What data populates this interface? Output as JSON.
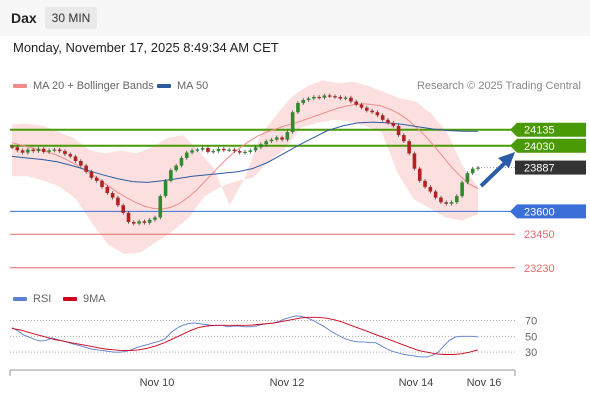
{
  "header": {
    "instrument": "Dax",
    "timeframe": "30 MIN"
  },
  "datetime": "Monday, November 17, 2025 8:49:34 AM CET",
  "legend": [
    {
      "label": "MA 20 + Bollinger Bands",
      "color": "#f28b8b"
    },
    {
      "label": "MA 50",
      "color": "#2f5a9e"
    }
  ],
  "credit": "Research © 2025 Trading Central",
  "rsi_legend": [
    {
      "label": "RSI",
      "color": "#5b7fd1"
    },
    {
      "label": "9MA",
      "color": "#d0021b"
    }
  ],
  "colors": {
    "resistance": "#4a9a06",
    "support": "#3a6fd8",
    "extra_support": "#e36a6a",
    "price_tag": "#333333",
    "bull": "#2e8b2e",
    "bear": "#b22222"
  },
  "chart_data": [
    {
      "type": "candlestick",
      "title": "",
      "x_ticks": [
        "Nov 10",
        "Nov 12",
        "Nov 14",
        "Nov 16"
      ],
      "ylim": [
        23150,
        24330
      ],
      "levels": [
        {
          "label": "24135",
          "value": 24135,
          "kind": "resistance"
        },
        {
          "label": "24030",
          "value": 24030,
          "kind": "resistance"
        },
        {
          "label": "23887",
          "value": 23887,
          "kind": "current"
        },
        {
          "label": "23600",
          "value": 23600,
          "kind": "support"
        },
        {
          "label": "23450",
          "value": 23450,
          "kind": "extra_support"
        },
        {
          "label": "23230",
          "value": 23230,
          "kind": "extra_support"
        }
      ],
      "close": [
        24020,
        24000,
        23985,
        24005,
        23995,
        24010,
        23990,
        24000,
        24005,
        23995,
        23975,
        23960,
        23930,
        23900,
        23860,
        23820,
        23800,
        23760,
        23720,
        23690,
        23640,
        23590,
        23530,
        23520,
        23535,
        23525,
        23545,
        23560,
        23700,
        23800,
        23870,
        23900,
        23950,
        23985,
        24000,
        24005,
        24015,
        23990,
        23995,
        24010,
        24000,
        24005,
        23995,
        23985,
        23990,
        24000,
        24020,
        24040,
        24060,
        24070,
        24085,
        24070,
        24120,
        24250,
        24310,
        24330,
        24340,
        24350,
        24345,
        24360,
        24355,
        24350,
        24340,
        24345,
        24320,
        24300,
        24280,
        24260,
        24250,
        24230,
        24200,
        24180,
        24160,
        24100,
        24060,
        23980,
        23880,
        23800,
        23760,
        23730,
        23690,
        23660,
        23650,
        23660,
        23700,
        23790,
        23850,
        23880,
        23887
      ],
      "ma20": [
        24050,
        24035,
        24020,
        24005,
        23990,
        23970,
        23945,
        23915,
        23880,
        23845,
        23805,
        23765,
        23725,
        23690,
        23660,
        23635,
        23620,
        23615,
        23625,
        23650,
        23690,
        23740,
        23800,
        23860,
        23920,
        23975,
        24020,
        24060,
        24095,
        24120,
        24140,
        24160,
        24175,
        24195,
        24215,
        24235,
        24255,
        24275,
        24290,
        24300,
        24305,
        24300,
        24290,
        24270,
        24240,
        24200,
        24150,
        24095,
        24030,
        23960,
        23890,
        23830,
        23780,
        23750
      ],
      "ma50": [
        23960,
        23950,
        23940,
        23925,
        23900,
        23870,
        23840,
        23815,
        23795,
        23790,
        23800,
        23815,
        23830,
        23840,
        23850,
        23860,
        23880,
        23920,
        23975,
        24030,
        24080,
        24130,
        24160,
        24180,
        24185,
        24180,
        24170,
        24155,
        24140,
        24130,
        24125,
        24125
      ],
      "bb_upper": [
        24170,
        24175,
        24160,
        24120,
        24080,
        24000,
        23980,
        24000,
        23980,
        24020,
        24080,
        24100,
        24000,
        23880,
        23640,
        23820,
        24100,
        24230,
        24350,
        24420,
        24460,
        24440,
        24450,
        24420,
        24380,
        24340,
        24320,
        24240,
        24120,
        23900,
        23760
      ],
      "bb_lower": [
        23830,
        23830,
        23800,
        23760,
        23680,
        23520,
        23380,
        23320,
        23330,
        23400,
        23470,
        23560,
        23700,
        23760,
        23800,
        23820,
        23930,
        24010,
        24150,
        24180,
        24200,
        24190,
        24160,
        24120,
        23850,
        23680,
        23620,
        23560,
        23540,
        23580
      ]
    },
    {
      "type": "line",
      "title": "RSI",
      "ylim": [
        10,
        82
      ],
      "y_ticks": [
        70,
        50,
        30
      ],
      "series": [
        {
          "name": "RSI",
          "values": [
            61,
            57,
            52,
            49,
            46,
            44,
            45,
            48,
            46,
            44,
            42,
            40,
            38,
            36,
            34,
            33,
            32,
            31,
            30,
            30,
            31,
            33,
            36,
            38,
            40,
            42,
            44,
            47,
            55,
            60,
            64,
            66,
            67,
            66,
            65,
            64,
            64,
            64,
            62,
            63,
            63,
            62,
            62,
            63,
            65,
            66,
            67,
            69,
            72,
            74,
            76,
            75,
            73,
            70,
            66,
            62,
            57,
            53,
            49,
            46,
            44,
            43,
            43,
            42,
            42,
            38,
            34,
            31,
            29,
            27,
            26,
            25,
            24,
            24,
            26,
            30,
            38,
            45,
            49,
            50,
            50,
            50,
            49
          ]
        },
        {
          "name": "9MA",
          "values": [
            60,
            58,
            55,
            52,
            49,
            46,
            44,
            42,
            40,
            38,
            36,
            34,
            33,
            32,
            32,
            33,
            35,
            38,
            42,
            47,
            52,
            57,
            61,
            63,
            64,
            64,
            64,
            64,
            64,
            65,
            66,
            67,
            69,
            71,
            73,
            74,
            74,
            73,
            71,
            68,
            64,
            60,
            56,
            52,
            48,
            44,
            40,
            36,
            32,
            30,
            28,
            27,
            27,
            28,
            30,
            33
          ]
        }
      ]
    }
  ]
}
